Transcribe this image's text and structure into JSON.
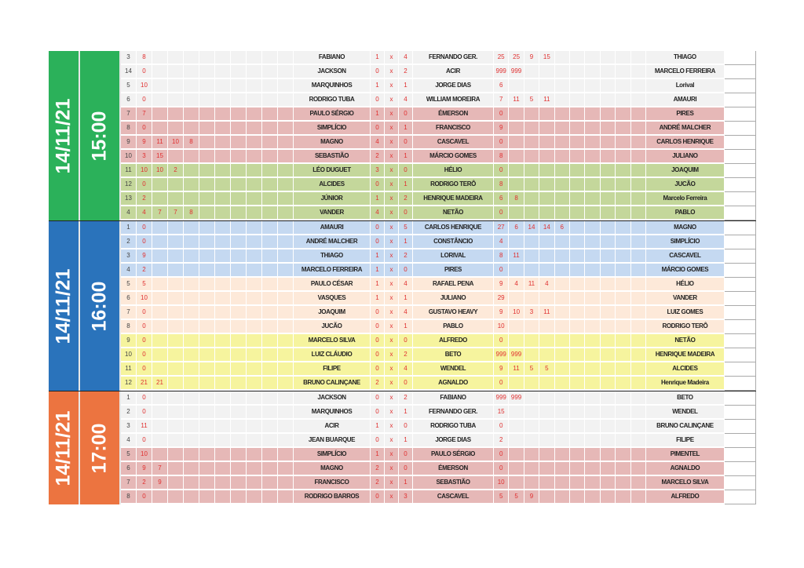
{
  "colors": {
    "gray": "#f2f2f2",
    "pink": "#e6b8b7",
    "green": "#c4d79b",
    "blue": "#c5d9f1",
    "peach": "#fde9d9",
    "yellow": "#f6f49e"
  },
  "groups": [
    {
      "date": "14/11/21",
      "time": "15:00",
      "color": "#2bb15a",
      "rows": [
        {
          "n": "3",
          "l": [
            "8"
          ],
          "home": "FABIANO",
          "hs": "1",
          "x": "x",
          "as": "4",
          "away": "FERNANDO GER.",
          "r": [
            "25",
            "25",
            "9",
            "15"
          ],
          "opp": "THIAGO",
          "band": "gray"
        },
        {
          "n": "14",
          "l": [
            "0"
          ],
          "home": "JACKSON",
          "hs": "0",
          "x": "x",
          "as": "2",
          "away": "ACIR",
          "r": [
            "999",
            "999"
          ],
          "opp": "MARCELO FERREIRA",
          "band": "gray"
        },
        {
          "n": "5",
          "l": [
            "10"
          ],
          "home": "MARQUINHOS",
          "hs": "1",
          "x": "x",
          "as": "1",
          "away": "JORGE DIAS",
          "r": [
            "6"
          ],
          "opp": "Lorival",
          "band": "gray"
        },
        {
          "n": "6",
          "l": [
            "0"
          ],
          "home": "RODRIGO TUBA",
          "hs": "0",
          "x": "x",
          "as": "4",
          "away": "WILLIAM MOREIRA",
          "r": [
            "7",
            "11",
            "5",
            "11"
          ],
          "opp": "AMAURI",
          "band": "gray"
        },
        {
          "n": "7",
          "l": [
            "7"
          ],
          "home": "PAULO SÉRGIO",
          "hs": "1",
          "x": "x",
          "as": "0",
          "away": "ÉMERSON",
          "r": [
            "0"
          ],
          "opp": "PIRES",
          "band": "pink"
        },
        {
          "n": "8",
          "l": [
            "0"
          ],
          "home": "SIMPLÍCIO",
          "hs": "0",
          "x": "x",
          "as": "1",
          "away": "FRANCISCO",
          "r": [
            "9"
          ],
          "opp": "ANDRÉ MALCHER",
          "band": "pink"
        },
        {
          "n": "9",
          "l": [
            "9",
            "11",
            "10",
            "8"
          ],
          "home": "MAGNO",
          "hs": "4",
          "x": "x",
          "as": "0",
          "away": "CASCAVEL",
          "r": [
            "0"
          ],
          "opp": "CARLOS HENRIQUE",
          "band": "pink"
        },
        {
          "n": "10",
          "l": [
            "3",
            "15"
          ],
          "home": "SEBASTIÃO",
          "hs": "2",
          "x": "x",
          "as": "1",
          "away": "MÁRCIO GOMES",
          "r": [
            "8"
          ],
          "opp": "JULIANO",
          "band": "pink"
        },
        {
          "n": "11",
          "l": [
            "10",
            "10",
            "2"
          ],
          "home": "LÉO DUGUET",
          "hs": "3",
          "x": "x",
          "as": "0",
          "away": "HÉLIO",
          "r": [
            "0"
          ],
          "opp": "JOAQUIM",
          "band": "green"
        },
        {
          "n": "12",
          "l": [
            "0"
          ],
          "home": "ALCIDES",
          "hs": "0",
          "x": "x",
          "as": "1",
          "away": "RODRIGO TERÔ",
          "r": [
            "8"
          ],
          "opp": "JUCÃO",
          "band": "green"
        },
        {
          "n": "13",
          "l": [
            "2"
          ],
          "home": "JÚNIOR",
          "hs": "1",
          "x": "x",
          "as": "2",
          "away": "HENRIQUE MADEIRA",
          "r": [
            "6",
            "8"
          ],
          "opp": "Marcelo Ferreira",
          "band": "green"
        },
        {
          "n": "4",
          "l": [
            "4",
            "7",
            "7",
            "8"
          ],
          "home": "VANDER",
          "hs": "4",
          "x": "x",
          "as": "0",
          "away": "NETÃO",
          "r": [
            "0"
          ],
          "opp": "PABLO",
          "band": "green"
        }
      ]
    },
    {
      "date": "14/11/21",
      "time": "16:00",
      "color": "#2a73bb",
      "rows": [
        {
          "n": "1",
          "l": [
            "0"
          ],
          "home": "AMAURI",
          "hs": "0",
          "x": "x",
          "as": "5",
          "away": "CARLOS HENRIQUE",
          "r": [
            "27",
            "6",
            "14",
            "14",
            "6"
          ],
          "opp": "MAGNO",
          "band": "blue"
        },
        {
          "n": "2",
          "l": [
            "0"
          ],
          "home": "ANDRÉ MALCHER",
          "hs": "0",
          "x": "x",
          "as": "1",
          "away": "CONSTÂNCIO",
          "r": [
            "4"
          ],
          "opp": "SIMPLÍCIO",
          "band": "blue"
        },
        {
          "n": "3",
          "l": [
            "9"
          ],
          "home": "THIAGO",
          "hs": "1",
          "x": "x",
          "as": "2",
          "away": "LORIVAL",
          "r": [
            "8",
            "11"
          ],
          "opp": "CASCAVEL",
          "band": "blue"
        },
        {
          "n": "4",
          "l": [
            "2"
          ],
          "home": "MARCELO FERREIRA",
          "hs": "1",
          "x": "x",
          "as": "0",
          "away": "PIRES",
          "r": [
            "0"
          ],
          "opp": "MÁRCIO GOMES",
          "band": "blue"
        },
        {
          "n": "5",
          "l": [
            "5"
          ],
          "home": "PAULO CÉSAR",
          "hs": "1",
          "x": "x",
          "as": "4",
          "away": "RAFAEL PENA",
          "r": [
            "9",
            "4",
            "11",
            "4"
          ],
          "opp": "HÉLIO",
          "band": "peach"
        },
        {
          "n": "6",
          "l": [
            "10"
          ],
          "home": "VASQUES",
          "hs": "1",
          "x": "x",
          "as": "1",
          "away": "JULIANO",
          "r": [
            "29"
          ],
          "opp": "VANDER",
          "band": "peach"
        },
        {
          "n": "7",
          "l": [
            "0"
          ],
          "home": "JOAQUIM",
          "hs": "0",
          "x": "x",
          "as": "4",
          "away": "GUSTAVO HEAVY",
          "r": [
            "9",
            "10",
            "3",
            "11"
          ],
          "opp": "LUIZ GOMES",
          "band": "peach"
        },
        {
          "n": "8",
          "l": [
            "0"
          ],
          "home": "JUCÃO",
          "hs": "0",
          "x": "x",
          "as": "1",
          "away": "PABLO",
          "r": [
            "10"
          ],
          "opp": "RODRIGO TERÔ",
          "band": "peach"
        },
        {
          "n": "9",
          "l": [
            "0"
          ],
          "home": "MARCELO SILVA",
          "hs": "0",
          "x": "x",
          "as": "0",
          "away": "ALFREDO",
          "r": [
            "0"
          ],
          "opp": "NETÃO",
          "band": "yellow"
        },
        {
          "n": "10",
          "l": [
            "0"
          ],
          "home": "LUIZ CLÁUDIO",
          "hs": "0",
          "x": "x",
          "as": "2",
          "away": "BETO",
          "r": [
            "999",
            "999"
          ],
          "opp": "HENRIQUE MADEIRA",
          "band": "yellow"
        },
        {
          "n": "11",
          "l": [
            "0"
          ],
          "home": "FILIPE",
          "hs": "0",
          "x": "x",
          "as": "4",
          "away": "WENDEL",
          "r": [
            "9",
            "11",
            "5",
            "5"
          ],
          "opp": "ALCIDES",
          "band": "yellow"
        },
        {
          "n": "12",
          "l": [
            "21",
            "21"
          ],
          "home": "BRUNO CALINÇANE",
          "hs": "2",
          "x": "x",
          "as": "0",
          "away": "AGNALDO",
          "r": [
            "0"
          ],
          "opp": "Henrique Madeira",
          "band": "yellow"
        }
      ]
    },
    {
      "date": "14/11/21",
      "time": "17:00",
      "color": "#ec7440",
      "rows": [
        {
          "n": "1",
          "l": [
            "0"
          ],
          "home": "JACKSON",
          "hs": "0",
          "x": "x",
          "as": "2",
          "away": "FABIANO",
          "r": [
            "999",
            "999"
          ],
          "opp": "BETO",
          "band": "gray"
        },
        {
          "n": "2",
          "l": [
            "0"
          ],
          "home": "MARQUINHOS",
          "hs": "0",
          "x": "x",
          "as": "1",
          "away": "FERNANDO GER.",
          "r": [
            "15"
          ],
          "opp": "WENDEL",
          "band": "gray"
        },
        {
          "n": "3",
          "l": [
            "11"
          ],
          "home": "ACIR",
          "hs": "1",
          "x": "x",
          "as": "0",
          "away": "RODRIGO TUBA",
          "r": [
            "0"
          ],
          "opp": "BRUNO CALINÇANE",
          "band": "gray"
        },
        {
          "n": "4",
          "l": [
            "0"
          ],
          "home": "JEAN BUARQUE",
          "hs": "0",
          "x": "x",
          "as": "1",
          "away": "JORGE DIAS",
          "r": [
            "2"
          ],
          "opp": "FILIPE",
          "band": "gray"
        },
        {
          "n": "5",
          "l": [
            "10"
          ],
          "home": "SIMPLÍCIO",
          "hs": "1",
          "x": "x",
          "as": "0",
          "away": "PAULO SÉRGIO",
          "r": [
            "0"
          ],
          "opp": "PIMENTEL",
          "band": "pink"
        },
        {
          "n": "6",
          "l": [
            "9",
            "7"
          ],
          "home": "MAGNO",
          "hs": "2",
          "x": "x",
          "as": "0",
          "away": "ÉMERSON",
          "r": [
            "0"
          ],
          "opp": "AGNALDO",
          "band": "pink"
        },
        {
          "n": "7",
          "l": [
            "2",
            "9"
          ],
          "home": "FRANCISCO",
          "hs": "2",
          "x": "x",
          "as": "1",
          "away": "SEBASTIÃO",
          "r": [
            "10"
          ],
          "opp": "MARCELO SILVA",
          "band": "pink"
        },
        {
          "n": "8",
          "l": [
            "0"
          ],
          "home": "RODRIGO BARROS",
          "hs": "0",
          "x": "x",
          "as": "3",
          "away": "CASCAVEL",
          "r": [
            "5",
            "5",
            "9"
          ],
          "opp": "ALFREDO",
          "band": "pink"
        }
      ]
    }
  ]
}
